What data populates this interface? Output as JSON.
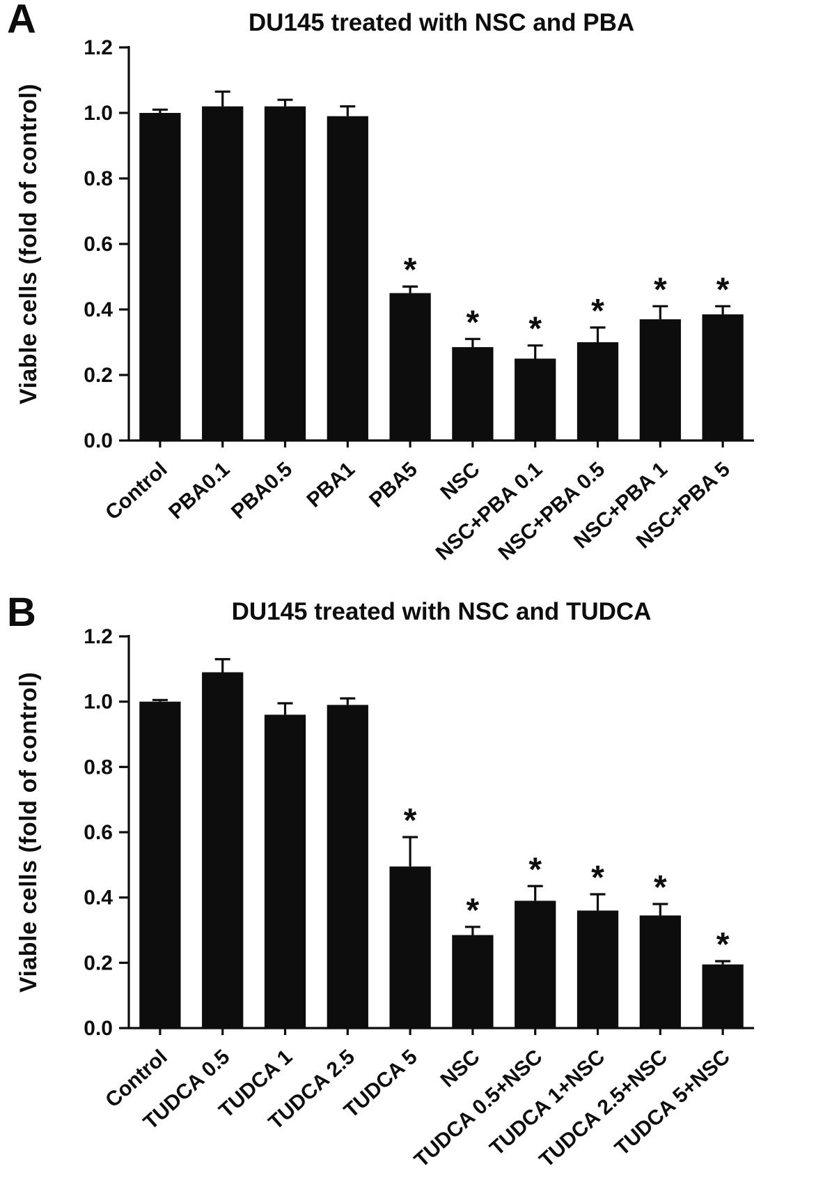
{
  "figure": {
    "panels": [
      {
        "label": "A"
      },
      {
        "label": "B"
      }
    ]
  },
  "chart_data": [
    {
      "type": "bar",
      "title": "DU145 treated with NSC and PBA",
      "ylabel": "Viable cells (fold of control)",
      "xlabel": "",
      "ylim": [
        0,
        1.2
      ],
      "ytick_labels": [
        "0.0",
        "0.2",
        "0.4",
        "0.6",
        "0.8",
        "1.0",
        "1.2"
      ],
      "grid": false,
      "legend": "none",
      "bar_color": "#0d0d0d",
      "significance_symbol": "*",
      "categories": [
        "Control",
        "PBA0.1",
        "PBA0.5",
        "PBA1",
        "PBA5",
        "NSC",
        "NSC+PBA 0.1",
        "NSC+PBA 0.5",
        "NSC+PBA 1",
        "NSC+PBA 5"
      ],
      "values": [
        1.0,
        1.02,
        1.02,
        0.99,
        0.45,
        0.285,
        0.25,
        0.3,
        0.37,
        0.385
      ],
      "errors": [
        0.01,
        0.045,
        0.02,
        0.03,
        0.02,
        0.025,
        0.04,
        0.045,
        0.04,
        0.025
      ],
      "significant": [
        false,
        false,
        false,
        false,
        true,
        true,
        true,
        true,
        true,
        true
      ]
    },
    {
      "type": "bar",
      "title": "DU145 treated with NSC and TUDCA",
      "ylabel": "Viable cells (fold of control)",
      "xlabel": "",
      "ylim": [
        0,
        1.2
      ],
      "ytick_labels": [
        "0.0",
        "0.2",
        "0.4",
        "0.6",
        "0.8",
        "1.0",
        "1.2"
      ],
      "grid": false,
      "legend": "none",
      "bar_color": "#0d0d0d",
      "significance_symbol": "*",
      "categories": [
        "Control",
        "TUDCA 0.5",
        "TUDCA 1",
        "TUDCA 2.5",
        "TUDCA 5",
        "NSC",
        "TUDCA 0.5+NSC",
        "TUDCA 1+NSC",
        "TUDCA 2.5+NSC",
        "TUDCA 5+NSC"
      ],
      "values": [
        1.0,
        1.09,
        0.96,
        0.99,
        0.495,
        0.285,
        0.39,
        0.36,
        0.345,
        0.195
      ],
      "errors": [
        0.005,
        0.04,
        0.035,
        0.02,
        0.09,
        0.025,
        0.045,
        0.05,
        0.035,
        0.01
      ],
      "significant": [
        false,
        false,
        false,
        false,
        true,
        true,
        true,
        true,
        true,
        true
      ]
    }
  ]
}
